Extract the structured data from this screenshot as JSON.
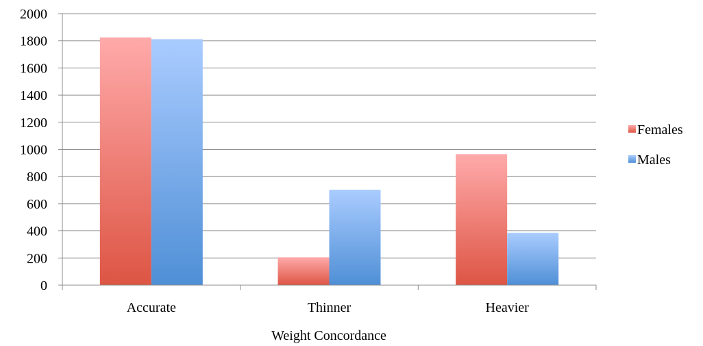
{
  "chart_data": {
    "type": "bar",
    "title": "",
    "xlabel": "Weight Concordance",
    "ylabel": "",
    "categories": [
      "Accurate",
      "Thinner",
      "Heavier"
    ],
    "series": [
      {
        "name": "Females",
        "values": [
          1825,
          205,
          965
        ],
        "color_top": "#ffaaaa",
        "color_bottom": "#dd5544"
      },
      {
        "name": "Males",
        "values": [
          1812,
          702,
          385
        ],
        "color_top": "#aaccff",
        "color_bottom": "#4f8fd6"
      }
    ],
    "ylim": [
      0,
      2000
    ],
    "yticks": [
      "0",
      "200",
      "400",
      "600",
      "800",
      "1000",
      "1200",
      "1400",
      "1600",
      "1800",
      "2000"
    ],
    "grid": true,
    "legend_position": "right"
  }
}
